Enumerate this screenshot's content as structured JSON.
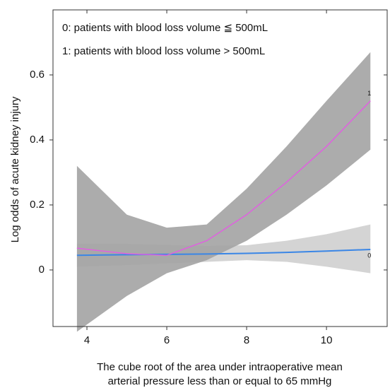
{
  "chart_data": {
    "type": "line",
    "annotations": [
      "0: patients with blood loss volume ≦ 500mL",
      "1: patients with blood loss volume > 500mL"
    ],
    "x_label": [
      "The cube root of the area under intraoperative mean",
      "arterial pressure less than or equal to 65 mmHg"
    ],
    "y_label": "Log odds of acute kidney injury",
    "x": [
      3.75,
      5,
      6,
      7,
      8,
      9,
      10,
      11.1
    ],
    "series": [
      {
        "name": "0",
        "color": "#3a86e6",
        "band_color": "#d4d4d4",
        "values": [
          0.045,
          0.047,
          0.048,
          0.049,
          0.051,
          0.054,
          0.058,
          0.063
        ],
        "lower": [
          0.01,
          0.015,
          0.02,
          0.025,
          0.03,
          0.025,
          0.01,
          -0.01
        ],
        "upper": [
          0.08,
          0.08,
          0.077,
          0.074,
          0.076,
          0.09,
          0.11,
          0.14
        ]
      },
      {
        "name": "1",
        "color": "#e060e0",
        "band_color": "#a3a3a3",
        "values": [
          0.067,
          0.05,
          0.045,
          0.09,
          0.17,
          0.27,
          0.38,
          0.52
        ],
        "lower": [
          -0.19,
          -0.08,
          -0.01,
          0.03,
          0.09,
          0.17,
          0.26,
          0.37
        ],
        "upper": [
          0.32,
          0.17,
          0.13,
          0.14,
          0.25,
          0.38,
          0.52,
          0.67
        ]
      }
    ],
    "xlim": [
      3.15,
      11.52
    ],
    "ylim": [
      -0.174,
      0.8
    ],
    "xticks": [
      4,
      6,
      8,
      10
    ],
    "yticks": [
      0,
      0.2,
      0.4,
      0.6
    ]
  }
}
